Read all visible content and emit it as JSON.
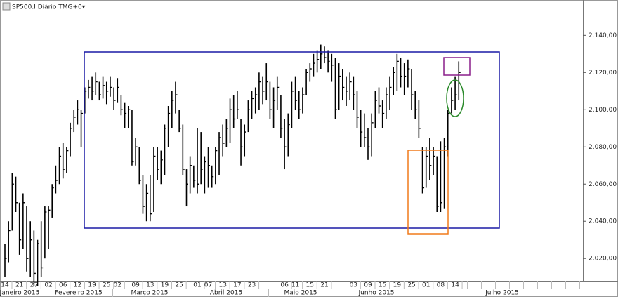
{
  "chart_data": {
    "type": "hlc",
    "title": "SP500.I Diário TMG+0▾",
    "color": "#000000",
    "grid": false,
    "ylim": [
      2008,
      2159
    ],
    "yticks": [
      {
        "value": 2020,
        "label": "2.020,00"
      },
      {
        "value": 2040,
        "label": "2.040,00"
      },
      {
        "value": 2060,
        "label": "2.060,00"
      },
      {
        "value": 2080,
        "label": "2.080,00"
      },
      {
        "value": 2100,
        "label": "2.100,00"
      },
      {
        "value": 2120,
        "label": "2.120,00"
      },
      {
        "value": 2140,
        "label": "2.140,00"
      }
    ],
    "months": [
      "Janeiro 2015",
      "Fevereiro 2015",
      "Março 2015",
      "Abril 2015",
      "Maio 2015",
      "Junho 2015",
      "Julho 2015"
    ],
    "categories": [
      "14",
      null,
      null,
      null,
      "21",
      null,
      null,
      null,
      "27",
      null,
      null,
      null,
      "02",
      null,
      null,
      null,
      "06",
      null,
      null,
      null,
      "12",
      null,
      null,
      null,
      "19",
      null,
      null,
      null,
      "25",
      null,
      null,
      "02",
      null,
      null,
      null,
      null,
      "09",
      null,
      null,
      null,
      "13",
      null,
      null,
      null,
      "19",
      null,
      null,
      null,
      "25",
      null,
      null,
      null,
      null,
      "01",
      null,
      null,
      "07",
      null,
      null,
      null,
      "13",
      null,
      null,
      null,
      "17",
      null,
      null,
      null,
      "23",
      null,
      null,
      null,
      null,
      null,
      null,
      null,
      null,
      "06",
      null,
      null,
      "11",
      null,
      null,
      null,
      "15",
      null,
      null,
      null,
      "21",
      null,
      null,
      null,
      null,
      null,
      null,
      null,
      "03",
      null,
      null,
      null,
      "09",
      null,
      null,
      null,
      "15",
      null,
      null,
      null,
      "19",
      null,
      null,
      null,
      "25",
      null,
      null,
      null,
      "01",
      null,
      null,
      null,
      "08",
      null,
      null,
      null,
      "14",
      null
    ],
    "high": [
      2028,
      2040,
      2066,
      2064,
      2050,
      2055,
      2048,
      2040,
      2035,
      2030,
      2040,
      2048,
      2048,
      2060,
      2070,
      2080,
      2082,
      2080,
      2093,
      2100,
      2105,
      2100,
      2112,
      2116,
      2118,
      2120,
      2115,
      2118,
      2115,
      2118,
      2112,
      2117,
      2108,
      2104,
      2102,
      2100,
      2085,
      2080,
      2065,
      2060,
      2065,
      2080,
      2080,
      2078,
      2092,
      2102,
      2110,
      2115,
      2100,
      2092,
      2068,
      2075,
      2070,
      2090,
      2088,
      2075,
      2080,
      2070,
      2080,
      2088,
      2092,
      2095,
      2106,
      2108,
      2110,
      2095,
      2092,
      2105,
      2110,
      2112,
      2120,
      2118,
      2125,
      2115,
      2112,
      2118,
      2108,
      2095,
      2098,
      2115,
      2118,
      2110,
      2112,
      2122,
      2125,
      2130,
      2132,
      2135,
      2134,
      2132,
      2130,
      2128,
      2125,
      2122,
      2118,
      2120,
      2118,
      2110,
      2100,
      2098,
      2090,
      2098,
      2110,
      2112,
      2105,
      2112,
      2118,
      2123,
      2130,
      2128,
      2125,
      2127,
      2122,
      2110,
      2105,
      2080,
      2080,
      2085,
      2080,
      2075,
      2083,
      2085,
      2100,
      2112,
      2118,
      2126
    ],
    "low": [
      2010,
      2018,
      2035,
      2045,
      2022,
      2025,
      2013,
      2010,
      2005,
      2005,
      2010,
      2020,
      2025,
      2042,
      2055,
      2060,
      2063,
      2066,
      2075,
      2088,
      2092,
      2080,
      2098,
      2106,
      2105,
      2108,
      2105,
      2106,
      2103,
      2107,
      2100,
      2104,
      2097,
      2090,
      2090,
      2070,
      2070,
      2060,
      2044,
      2040,
      2040,
      2045,
      2062,
      2060,
      2065,
      2080,
      2090,
      2098,
      2088,
      2065,
      2048,
      2055,
      2058,
      2055,
      2060,
      2055,
      2058,
      2058,
      2060,
      2065,
      2075,
      2080,
      2082,
      2090,
      2095,
      2070,
      2075,
      2088,
      2095,
      2098,
      2100,
      2103,
      2105,
      2095,
      2090,
      2100,
      2085,
      2068,
      2075,
      2090,
      2100,
      2095,
      2098,
      2108,
      2115,
      2118,
      2120,
      2122,
      2125,
      2120,
      2115,
      2095,
      2100,
      2105,
      2102,
      2105,
      2100,
      2090,
      2080,
      2080,
      2073,
      2075,
      2090,
      2098,
      2090,
      2095,
      2100,
      2108,
      2110,
      2112,
      2108,
      2112,
      2100,
      2095,
      2085,
      2055,
      2058,
      2062,
      2065,
      2045,
      2045,
      2047,
      2075,
      2098,
      2100,
      2105
    ],
    "close": [
      2020,
      2035,
      2060,
      2050,
      2030,
      2050,
      2020,
      2030,
      2012,
      2028,
      2015,
      2045,
      2046,
      2058,
      2062,
      2075,
      2068,
      2078,
      2090,
      2096,
      2100,
      2098,
      2110,
      2112,
      2110,
      2115,
      2108,
      2113,
      2110,
      2112,
      2105,
      2112,
      2100,
      2098,
      2100,
      2072,
      2080,
      2062,
      2048,
      2055,
      2044,
      2075,
      2068,
      2073,
      2090,
      2098,
      2105,
      2108,
      2090,
      2068,
      2060,
      2070,
      2062,
      2060,
      2068,
      2072,
      2070,
      2064,
      2078,
      2085,
      2082,
      2090,
      2100,
      2095,
      2100,
      2080,
      2088,
      2100,
      2106,
      2108,
      2115,
      2110,
      2115,
      2100,
      2105,
      2112,
      2090,
      2080,
      2092,
      2110,
      2105,
      2100,
      2108,
      2120,
      2122,
      2125,
      2127,
      2130,
      2128,
      2126,
      2124,
      2100,
      2118,
      2112,
      2110,
      2115,
      2108,
      2096,
      2088,
      2085,
      2080,
      2093,
      2105,
      2102,
      2098,
      2108,
      2112,
      2120,
      2126,
      2118,
      2118,
      2122,
      2108,
      2100,
      2090,
      2058,
      2075,
      2070,
      2075,
      2048,
      2050,
      2080,
      2098,
      2105,
      2108,
      2120
    ]
  }
}
